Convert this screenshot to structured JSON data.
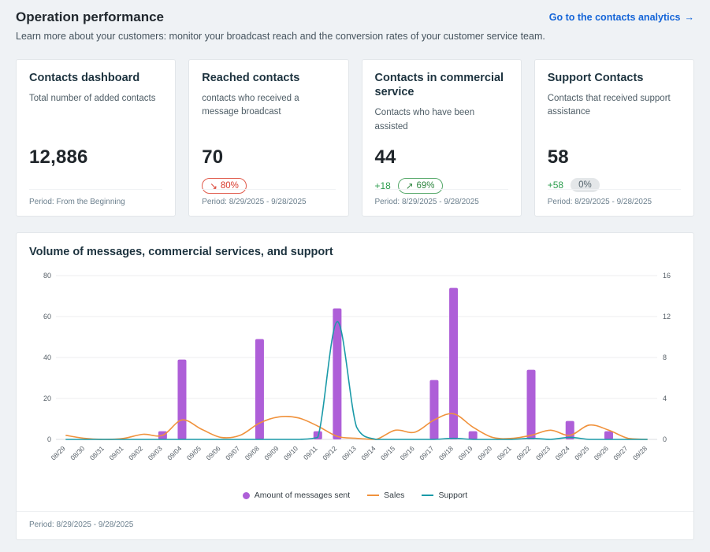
{
  "page": {
    "title": "Operation performance",
    "subtitle": "Learn more about your customers: monitor your broadcast reach and the conversion rates of your customer service team.",
    "link_label": "Go to the contacts analytics",
    "link_arrow": "→"
  },
  "cards": [
    {
      "title": "Contacts dashboard",
      "description": "Total number of added contacts",
      "value": "12,886",
      "footer": "Period: From the Beginning"
    },
    {
      "title": "Reached contacts",
      "description": "contacts who received a message broadcast",
      "value": "70",
      "badge": "80%",
      "badge_icon": "↘",
      "badge_type": "down",
      "footer": "Period: 8/29/2025 - 9/28/2025"
    },
    {
      "title": "Contacts in commercial service",
      "description": "Contacts who have been assisted",
      "value": "44",
      "delta": "+18",
      "badge": "69%",
      "badge_icon": "↗",
      "badge_type": "up",
      "footer": "Period: 8/29/2025 - 9/28/2025"
    },
    {
      "title": "Support Contacts",
      "description": "Contacts that received support assistance",
      "value": "58",
      "delta": "+58",
      "badge": "0%",
      "badge_type": "neutral",
      "footer": "Period: 8/29/2025 - 9/28/2025"
    }
  ],
  "chart": {
    "title": "Volume of messages, commercial services, and support",
    "footer": "Period: 8/29/2025 - 9/28/2025"
  },
  "chart_data": {
    "type": "bar",
    "title": "Volume of messages, commercial services, and support",
    "categories": [
      "08/29",
      "08/30",
      "08/31",
      "09/01",
      "09/02",
      "09/03",
      "09/04",
      "09/05",
      "09/06",
      "09/07",
      "09/08",
      "09/09",
      "09/10",
      "09/11",
      "09/12",
      "09/13",
      "09/14",
      "09/15",
      "09/16",
      "09/17",
      "09/18",
      "09/19",
      "09/20",
      "09/21",
      "09/22",
      "09/23",
      "09/24",
      "09/25",
      "09/26",
      "09/27",
      "09/28"
    ],
    "series": [
      {
        "name": "Amount of messages sent",
        "type": "bar",
        "axis": "left",
        "color": "#ae5fd8",
        "values": [
          0,
          0,
          0,
          0,
          0,
          4,
          39,
          0,
          0,
          0,
          49,
          0,
          0,
          4,
          64,
          0,
          0,
          0,
          0,
          29,
          74,
          4,
          0,
          0,
          34,
          0,
          9,
          0,
          4,
          0,
          0
        ]
      },
      {
        "name": "Sales",
        "type": "line",
        "axis": "right",
        "color": "#f0923c",
        "values": [
          0.4,
          0.1,
          0,
          0.1,
          0.5,
          0.4,
          1.9,
          1.0,
          0.2,
          0.4,
          1.6,
          2.2,
          2.1,
          1.3,
          0.3,
          0.1,
          0,
          0.9,
          0.7,
          1.9,
          2.5,
          1.2,
          0.2,
          0.1,
          0.4,
          0.9,
          0.4,
          1.4,
          0.9,
          0.1,
          0
        ]
      },
      {
        "name": "Support",
        "type": "line",
        "axis": "right",
        "color": "#1a9aa8",
        "values": [
          0,
          0,
          0,
          0,
          0,
          0,
          0,
          0,
          0,
          0,
          0,
          0,
          0,
          0.2,
          11.5,
          1.2,
          0,
          0,
          0,
          0,
          0.1,
          0,
          0,
          0,
          0.1,
          0,
          0.2,
          0,
          0,
          0,
          0
        ]
      }
    ],
    "left_axis": {
      "ticks": [
        0,
        20,
        40,
        60,
        80
      ],
      "max": 80
    },
    "right_axis": {
      "ticks": [
        0,
        4,
        8,
        12,
        16
      ],
      "max": 16
    },
    "grid": true,
    "legend_position": "bottom"
  }
}
